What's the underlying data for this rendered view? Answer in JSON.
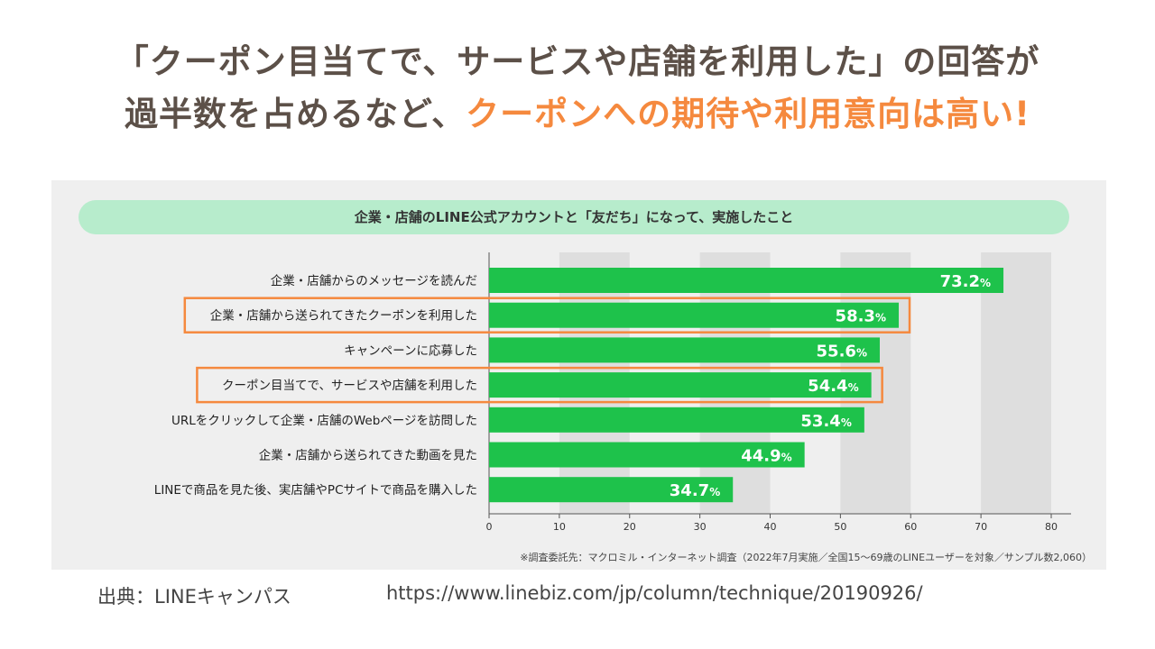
{
  "headline": {
    "line1": "「クーポン目当てで、サービスや店舗を利用した」の回答が",
    "line2_plain": "過半数を占めるなど、",
    "line2_accent": "クーポンへの期待や利用意向は高い!"
  },
  "source": {
    "label": "出典：LINEキャンパス",
    "url": "https://www.linebiz.com/jp/column/technique/20190926/"
  },
  "colors": {
    "bar": "#1ec24b",
    "highlight_box": "#f5893e",
    "accent_text": "#f5893e",
    "band": "#dedede"
  },
  "chart_data": {
    "type": "bar",
    "orientation": "horizontal",
    "title": "企業・店舗のLINE公式アカウントと「友だち」になって、実施したこと",
    "footnote": "※調査委託先：マクロミル・インターネット調査（2022年7月実施／全国15〜69歳のLINEユーザーを対象／サンプル数2,060）",
    "categories": [
      "企業・店舗からのメッセージを読んだ",
      "企業・店舗から送られてきたクーポンを利用した",
      "キャンペーンに応募した",
      "クーポン目当てで、サービスや店舗を利用した",
      "URLをクリックして企業・店舗のWebページを訪問した",
      "企業・店舗から送られてきた動画を見た",
      "LINEで商品を見た後、実店舗やPCサイトで商品を購入した"
    ],
    "values": [
      73.2,
      58.3,
      55.6,
      54.4,
      53.4,
      44.9,
      34.7
    ],
    "labels": [
      "73.2",
      "58.3",
      "55.6",
      "54.4",
      "53.4",
      "44.9",
      "34.7"
    ],
    "unit": "%",
    "highlighted": [
      1,
      3
    ],
    "xlim": [
      0,
      80
    ],
    "xticks": [
      "0",
      "10",
      "20",
      "30",
      "40",
      "50",
      "60",
      "70",
      "80"
    ]
  }
}
